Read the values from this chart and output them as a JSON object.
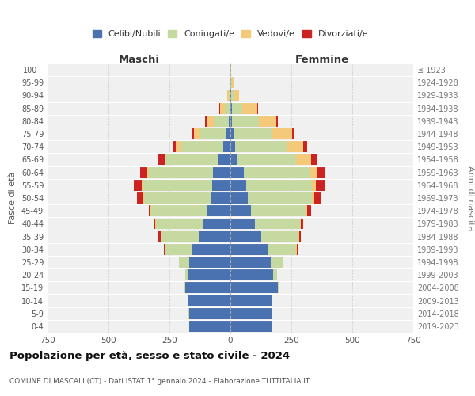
{
  "age_groups": [
    "0-4",
    "5-9",
    "10-14",
    "15-19",
    "20-24",
    "25-29",
    "30-34",
    "35-39",
    "40-44",
    "45-49",
    "50-54",
    "55-59",
    "60-64",
    "65-69",
    "70-74",
    "75-79",
    "80-84",
    "85-89",
    "90-94",
    "95-99",
    "100+"
  ],
  "birth_years": [
    "2019-2023",
    "2014-2018",
    "2009-2013",
    "2004-2008",
    "1999-2003",
    "1994-1998",
    "1989-1993",
    "1984-1988",
    "1979-1983",
    "1974-1978",
    "1969-1973",
    "1964-1968",
    "1959-1963",
    "1954-1958",
    "1949-1953",
    "1944-1948",
    "1939-1943",
    "1934-1938",
    "1929-1933",
    "1924-1928",
    "≤ 1923"
  ],
  "colors": {
    "celibe": "#4a72b0",
    "coniugato": "#c5d9a0",
    "vedovo": "#f5c97a",
    "divorziato": "#cc2222"
  },
  "maschi": {
    "celibe": [
      170,
      170,
      175,
      185,
      175,
      170,
      155,
      130,
      110,
      95,
      80,
      75,
      70,
      50,
      30,
      15,
      8,
      3,
      2,
      0,
      0
    ],
    "coniugato": [
      0,
      3,
      0,
      2,
      10,
      40,
      110,
      155,
      195,
      230,
      275,
      285,
      265,
      215,
      175,
      110,
      60,
      20,
      5,
      2,
      0
    ],
    "vedovo": [
      0,
      0,
      0,
      0,
      0,
      0,
      2,
      2,
      2,
      2,
      3,
      5,
      5,
      5,
      20,
      25,
      30,
      20,
      5,
      2,
      0
    ],
    "divorziato": [
      0,
      0,
      0,
      0,
      0,
      2,
      5,
      8,
      8,
      8,
      25,
      30,
      30,
      25,
      10,
      8,
      5,
      3,
      0,
      0,
      0
    ]
  },
  "femmine": {
    "celibe": [
      170,
      170,
      170,
      195,
      175,
      165,
      155,
      125,
      100,
      85,
      70,
      65,
      55,
      30,
      20,
      12,
      8,
      5,
      2,
      0,
      0
    ],
    "coniugato": [
      0,
      2,
      0,
      2,
      15,
      50,
      115,
      155,
      185,
      225,
      265,
      270,
      270,
      240,
      210,
      160,
      110,
      45,
      15,
      5,
      0
    ],
    "vedovo": [
      0,
      0,
      0,
      0,
      0,
      0,
      2,
      2,
      5,
      5,
      8,
      15,
      30,
      60,
      70,
      80,
      70,
      60,
      20,
      8,
      2
    ],
    "divorziato": [
      0,
      0,
      0,
      0,
      0,
      2,
      5,
      8,
      8,
      15,
      30,
      35,
      35,
      25,
      15,
      10,
      8,
      5,
      0,
      0,
      0
    ]
  },
  "title": "Popolazione per età, sesso e stato civile - 2024",
  "subtitle": "COMUNE DI MASCALI (CT) - Dati ISTAT 1° gennaio 2024 - Elaborazione TUTTITALIA.IT",
  "xlabel_left": "Maschi",
  "xlabel_right": "Femmine",
  "ylabel_left": "Fasce di età",
  "ylabel_right": "Anni di nascita",
  "xlim": 750,
  "legend_labels": [
    "Celibi/Nubili",
    "Coniugati/e",
    "Vedovi/e",
    "Divorziati/e"
  ],
  "background_color": "#ffffff"
}
